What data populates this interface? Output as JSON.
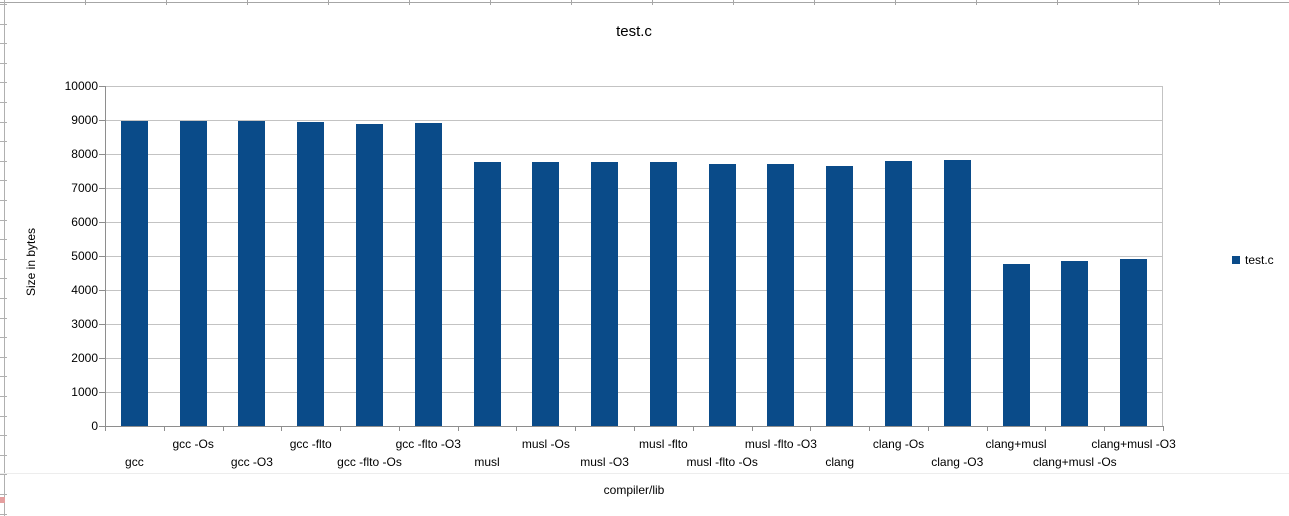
{
  "chart_data": {
    "type": "bar",
    "title": "test.c",
    "xlabel": "compiler/lib",
    "ylabel": "Size in bytes",
    "series_name": "test.c",
    "legend_position": "right",
    "grid": true,
    "ylim": [
      0,
      10000
    ],
    "ytick_step": 1000,
    "bar_color": "#0a4b89",
    "categories": [
      "gcc",
      "gcc -Os",
      "gcc -O3",
      "gcc -flto",
      "gcc -flto -Os",
      "gcc -flto -O3",
      "musl",
      "musl -Os",
      "musl -O3",
      "musl -flto",
      "musl -flto -Os",
      "musl -flto -O3",
      "clang",
      "clang -Os",
      "clang -O3",
      "clang+musl",
      "clang+musl -Os",
      "clang+musl -O3"
    ],
    "values": [
      8970,
      8970,
      8980,
      8950,
      8890,
      8900,
      7760,
      7780,
      7780,
      7780,
      7710,
      7720,
      7660,
      7790,
      7820,
      4760,
      4860,
      4910
    ]
  }
}
